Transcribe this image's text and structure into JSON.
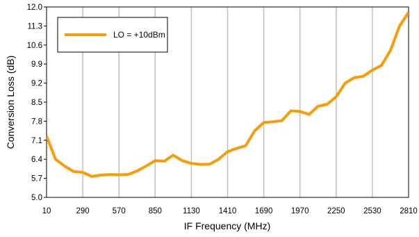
{
  "chart_data": {
    "type": "line",
    "title": "",
    "xlabel": "IF Frequency (MHz)",
    "ylabel": "Conversion Loss (dB)",
    "xlim": [
      10,
      2810
    ],
    "ylim": [
      5.0,
      12.0
    ],
    "x_ticks": [
      "10",
      "290",
      "570",
      "850",
      "1130",
      "1410",
      "1690",
      "1970",
      "2250",
      "2530",
      "2810"
    ],
    "y_ticks": [
      "5.0",
      "5.7",
      "6.4",
      "7.1",
      "7.8",
      "8.5",
      "9.2",
      "9.9",
      "10.6",
      "11.3",
      "12.0"
    ],
    "grid": "vertical",
    "legend_position": "top-left",
    "series": [
      {
        "name": "LO = +10dBm",
        "color": "#f79d09",
        "x": [
          10,
          80,
          150,
          220,
          290,
          360,
          430,
          500,
          570,
          640,
          710,
          780,
          850,
          920,
          990,
          1060,
          1130,
          1200,
          1270,
          1340,
          1410,
          1480,
          1550,
          1620,
          1690,
          1760,
          1830,
          1900,
          1970,
          2040,
          2110,
          2180,
          2250,
          2320,
          2390,
          2460,
          2530,
          2600,
          2670,
          2740,
          2810
        ],
        "y": [
          7.25,
          6.4,
          6.15,
          5.95,
          5.92,
          5.77,
          5.82,
          5.84,
          5.83,
          5.84,
          5.97,
          6.15,
          6.35,
          6.33,
          6.55,
          6.35,
          6.25,
          6.21,
          6.22,
          6.4,
          6.68,
          6.8,
          6.9,
          7.45,
          7.75,
          7.78,
          7.82,
          8.18,
          8.16,
          8.05,
          8.35,
          8.42,
          8.7,
          9.2,
          9.4,
          9.45,
          9.68,
          9.85,
          10.4,
          11.3,
          11.8
        ]
      }
    ]
  }
}
